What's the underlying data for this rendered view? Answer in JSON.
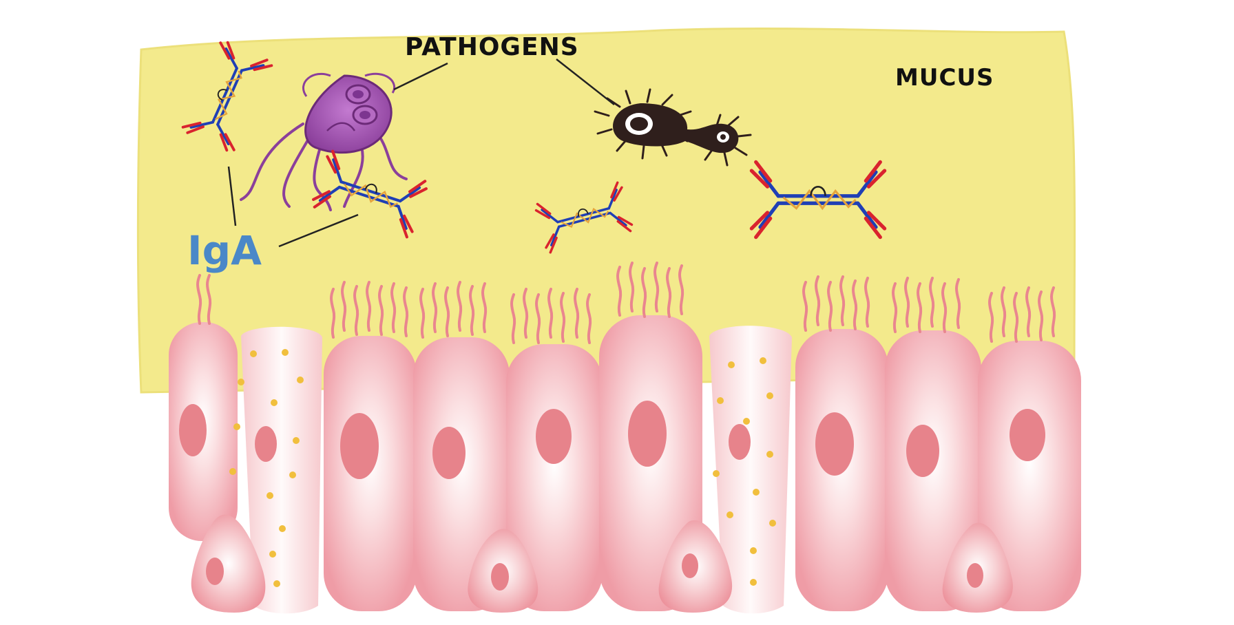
{
  "labels": {
    "pathogens": "PATHOGENS",
    "mucus": "MUCUS",
    "iga": "IgA"
  },
  "colors": {
    "mucus": "#f3ea8c",
    "cell_pink": "#f0a3ab",
    "cell_light": "#fbe3e4",
    "nucleus": "#e7838b",
    "goblet_cell": "#fdeeee",
    "granule": "#f1bf3d",
    "microvilli": "#e9868f",
    "antibody_heavy": "#1f3fb5",
    "antibody_light": "#d9232e",
    "antibody_hinge": "#e5a33c",
    "parasite": "#9a48a6",
    "fungus": "#2f1f1c",
    "iga_text": "#4a88c8"
  },
  "icons": [
    "giardia-parasite-icon",
    "fungus-pathogen-icon",
    "iga-antibody-icon",
    "epithelial-cell-icon",
    "goblet-cell-icon"
  ]
}
